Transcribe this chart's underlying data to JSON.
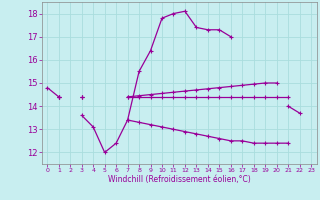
{
  "xlabel": "Windchill (Refroidissement éolien,°C)",
  "background_color": "#c8eef0",
  "line_color": "#990099",
  "grid_color": "#aadddd",
  "hours": [
    0,
    1,
    2,
    3,
    4,
    5,
    6,
    7,
    8,
    9,
    10,
    11,
    12,
    13,
    14,
    15,
    16,
    17,
    18,
    19,
    20,
    21,
    22,
    23
  ],
  "curve1": [
    14.8,
    14.4,
    null,
    13.6,
    13.1,
    12.0,
    12.4,
    13.4,
    15.5,
    16.4,
    17.8,
    18.0,
    18.1,
    17.4,
    17.3,
    17.3,
    17.0,
    null,
    null,
    null,
    null,
    14.0,
    13.7,
    null
  ],
  "curve2": [
    null,
    14.4,
    null,
    14.4,
    null,
    null,
    null,
    14.4,
    14.45,
    14.5,
    14.55,
    14.6,
    14.65,
    14.7,
    14.75,
    14.8,
    14.85,
    14.9,
    14.95,
    15.0,
    15.0,
    null,
    null,
    null
  ],
  "curve3": [
    null,
    14.4,
    null,
    14.4,
    null,
    null,
    null,
    14.4,
    14.4,
    14.4,
    14.4,
    14.4,
    14.4,
    14.4,
    14.4,
    14.4,
    14.4,
    14.4,
    14.4,
    14.4,
    14.4,
    14.4,
    null,
    null
  ],
  "curve4": [
    null,
    14.4,
    null,
    14.4,
    null,
    null,
    null,
    13.4,
    13.3,
    13.2,
    13.1,
    13.0,
    12.9,
    12.8,
    12.7,
    12.6,
    12.5,
    12.5,
    12.4,
    12.4,
    12.4,
    12.4,
    null,
    null
  ],
  "ylim": [
    11.5,
    18.5
  ],
  "yticks": [
    12,
    13,
    14,
    15,
    16,
    17,
    18
  ],
  "xlim": [
    -0.5,
    23.5
  ],
  "xticks": [
    0,
    1,
    2,
    3,
    4,
    5,
    6,
    7,
    8,
    9,
    10,
    11,
    12,
    13,
    14,
    15,
    16,
    17,
    18,
    19,
    20,
    21,
    22,
    23
  ]
}
